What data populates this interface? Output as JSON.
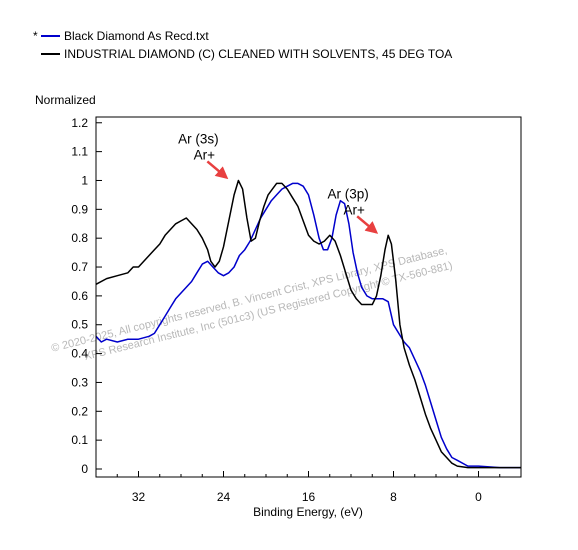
{
  "chart_data": {
    "type": "line",
    "xlabel": "Binding Energy, (eV)",
    "ylabel": "Normalized",
    "xlim": [
      36,
      -4
    ],
    "ylim": [
      0,
      1.2
    ],
    "x_reversed": true,
    "xticks": [
      32,
      24,
      16,
      8,
      0
    ],
    "yticks": [
      0,
      0.1,
      0.2,
      0.3,
      0.4,
      0.5,
      0.6,
      0.7,
      0.8,
      0.9,
      1,
      1.1,
      1.2
    ],
    "grid": false,
    "legend_position": "top-left",
    "series": [
      {
        "name": "Black Diamond As Recd.txt",
        "legend_marker": "*",
        "color": "#0000cc",
        "points": [
          [
            36.0,
            0.46
          ],
          [
            35.5,
            0.44
          ],
          [
            35.0,
            0.45
          ],
          [
            34.0,
            0.44
          ],
          [
            33.0,
            0.45
          ],
          [
            32.0,
            0.45
          ],
          [
            31.0,
            0.46
          ],
          [
            30.5,
            0.47
          ],
          [
            30.0,
            0.5
          ],
          [
            29.5,
            0.53
          ],
          [
            29.0,
            0.56
          ],
          [
            28.5,
            0.59
          ],
          [
            28.0,
            0.61
          ],
          [
            27.5,
            0.63
          ],
          [
            27.0,
            0.65
          ],
          [
            26.5,
            0.68
          ],
          [
            26.0,
            0.71
          ],
          [
            25.5,
            0.72
          ],
          [
            25.0,
            0.7
          ],
          [
            24.5,
            0.68
          ],
          [
            24.0,
            0.67
          ],
          [
            23.5,
            0.68
          ],
          [
            23.0,
            0.7
          ],
          [
            22.5,
            0.74
          ],
          [
            22.0,
            0.76
          ],
          [
            21.5,
            0.79
          ],
          [
            21.0,
            0.83
          ],
          [
            20.5,
            0.87
          ],
          [
            20.0,
            0.9
          ],
          [
            19.5,
            0.93
          ],
          [
            19.0,
            0.95
          ],
          [
            18.5,
            0.97
          ],
          [
            18.0,
            0.98
          ],
          [
            17.5,
            0.99
          ],
          [
            17.0,
            0.99
          ],
          [
            16.5,
            0.98
          ],
          [
            16.0,
            0.95
          ],
          [
            15.5,
            0.88
          ],
          [
            15.0,
            0.8
          ],
          [
            14.6,
            0.76
          ],
          [
            14.2,
            0.76
          ],
          [
            13.8,
            0.8
          ],
          [
            13.4,
            0.88
          ],
          [
            13.0,
            0.93
          ],
          [
            12.6,
            0.92
          ],
          [
            12.2,
            0.85
          ],
          [
            11.8,
            0.75
          ],
          [
            11.4,
            0.68
          ],
          [
            11.0,
            0.63
          ],
          [
            10.5,
            0.6
          ],
          [
            10.0,
            0.59
          ],
          [
            9.5,
            0.59
          ],
          [
            9.0,
            0.59
          ],
          [
            8.5,
            0.58
          ],
          [
            8.0,
            0.5
          ],
          [
            7.5,
            0.47
          ],
          [
            7.0,
            0.44
          ],
          [
            6.5,
            0.42
          ],
          [
            6.0,
            0.38
          ],
          [
            5.5,
            0.34
          ],
          [
            5.0,
            0.29
          ],
          [
            4.5,
            0.23
          ],
          [
            4.0,
            0.17
          ],
          [
            3.5,
            0.11
          ],
          [
            3.0,
            0.07
          ],
          [
            2.5,
            0.04
          ],
          [
            2.0,
            0.03
          ],
          [
            1.0,
            0.01
          ],
          [
            0.0,
            0.01
          ],
          [
            -2.0,
            0.005
          ],
          [
            -4.0,
            0.005
          ]
        ]
      },
      {
        "name": "INDUSTRIAL DIAMOND (C) CLEANED WITH SOLVENTS, 45 DEG TOA",
        "legend_marker": "",
        "color": "#000000",
        "points": [
          [
            36.0,
            0.64
          ],
          [
            35.0,
            0.66
          ],
          [
            34.0,
            0.67
          ],
          [
            33.0,
            0.68
          ],
          [
            32.5,
            0.7
          ],
          [
            32.0,
            0.7
          ],
          [
            31.5,
            0.72
          ],
          [
            31.0,
            0.74
          ],
          [
            30.5,
            0.76
          ],
          [
            30.0,
            0.78
          ],
          [
            29.5,
            0.81
          ],
          [
            29.0,
            0.83
          ],
          [
            28.5,
            0.85
          ],
          [
            28.0,
            0.86
          ],
          [
            27.5,
            0.87
          ],
          [
            27.0,
            0.85
          ],
          [
            26.5,
            0.83
          ],
          [
            26.0,
            0.8
          ],
          [
            25.5,
            0.76
          ],
          [
            25.2,
            0.72
          ],
          [
            24.8,
            0.7
          ],
          [
            24.4,
            0.72
          ],
          [
            24.0,
            0.77
          ],
          [
            23.5,
            0.86
          ],
          [
            23.0,
            0.95
          ],
          [
            22.6,
            1.0
          ],
          [
            22.2,
            0.97
          ],
          [
            21.8,
            0.87
          ],
          [
            21.4,
            0.79
          ],
          [
            21.0,
            0.8
          ],
          [
            20.6,
            0.86
          ],
          [
            20.2,
            0.91
          ],
          [
            19.8,
            0.95
          ],
          [
            19.4,
            0.97
          ],
          [
            19.0,
            0.99
          ],
          [
            18.5,
            0.99
          ],
          [
            18.0,
            0.97
          ],
          [
            17.5,
            0.94
          ],
          [
            17.0,
            0.91
          ],
          [
            16.5,
            0.86
          ],
          [
            16.0,
            0.81
          ],
          [
            15.5,
            0.79
          ],
          [
            15.0,
            0.78
          ],
          [
            14.5,
            0.79
          ],
          [
            14.0,
            0.81
          ],
          [
            13.5,
            0.79
          ],
          [
            13.0,
            0.74
          ],
          [
            12.5,
            0.68
          ],
          [
            12.0,
            0.62
          ],
          [
            11.5,
            0.59
          ],
          [
            11.0,
            0.57
          ],
          [
            10.5,
            0.57
          ],
          [
            10.0,
            0.57
          ],
          [
            9.6,
            0.6
          ],
          [
            9.2,
            0.67
          ],
          [
            8.8,
            0.76
          ],
          [
            8.5,
            0.81
          ],
          [
            8.2,
            0.78
          ],
          [
            7.8,
            0.66
          ],
          [
            7.4,
            0.5
          ],
          [
            7.0,
            0.42
          ],
          [
            6.5,
            0.36
          ],
          [
            6.0,
            0.31
          ],
          [
            5.5,
            0.25
          ],
          [
            5.0,
            0.19
          ],
          [
            4.5,
            0.14
          ],
          [
            4.0,
            0.1
          ],
          [
            3.5,
            0.06
          ],
          [
            3.0,
            0.04
          ],
          [
            2.5,
            0.02
          ],
          [
            2.0,
            0.01
          ],
          [
            1.0,
            0.005
          ],
          [
            0.0,
            0.005
          ],
          [
            -2.0,
            0.005
          ],
          [
            -4.0,
            0.005
          ]
        ]
      }
    ],
    "annotations": [
      {
        "lines": [
          "Ar (3s)",
          "Ar+"
        ],
        "x": 22.6,
        "y": 1.0,
        "arrow_color": "#e84040"
      },
      {
        "lines": [
          "Ar (3p)",
          "Ar+"
        ],
        "x": 8.5,
        "y": 0.81,
        "arrow_color": "#e84040"
      }
    ]
  },
  "watermark": {
    "lines": [
      "©  2020-2025,  All copyrights reserved,   B. Vincent Crist,  XPS Library, XPS Database,",
      "XPS Research Institute, Inc (501c3)   (US Registered Copyright © TX-560-881)"
    ]
  }
}
